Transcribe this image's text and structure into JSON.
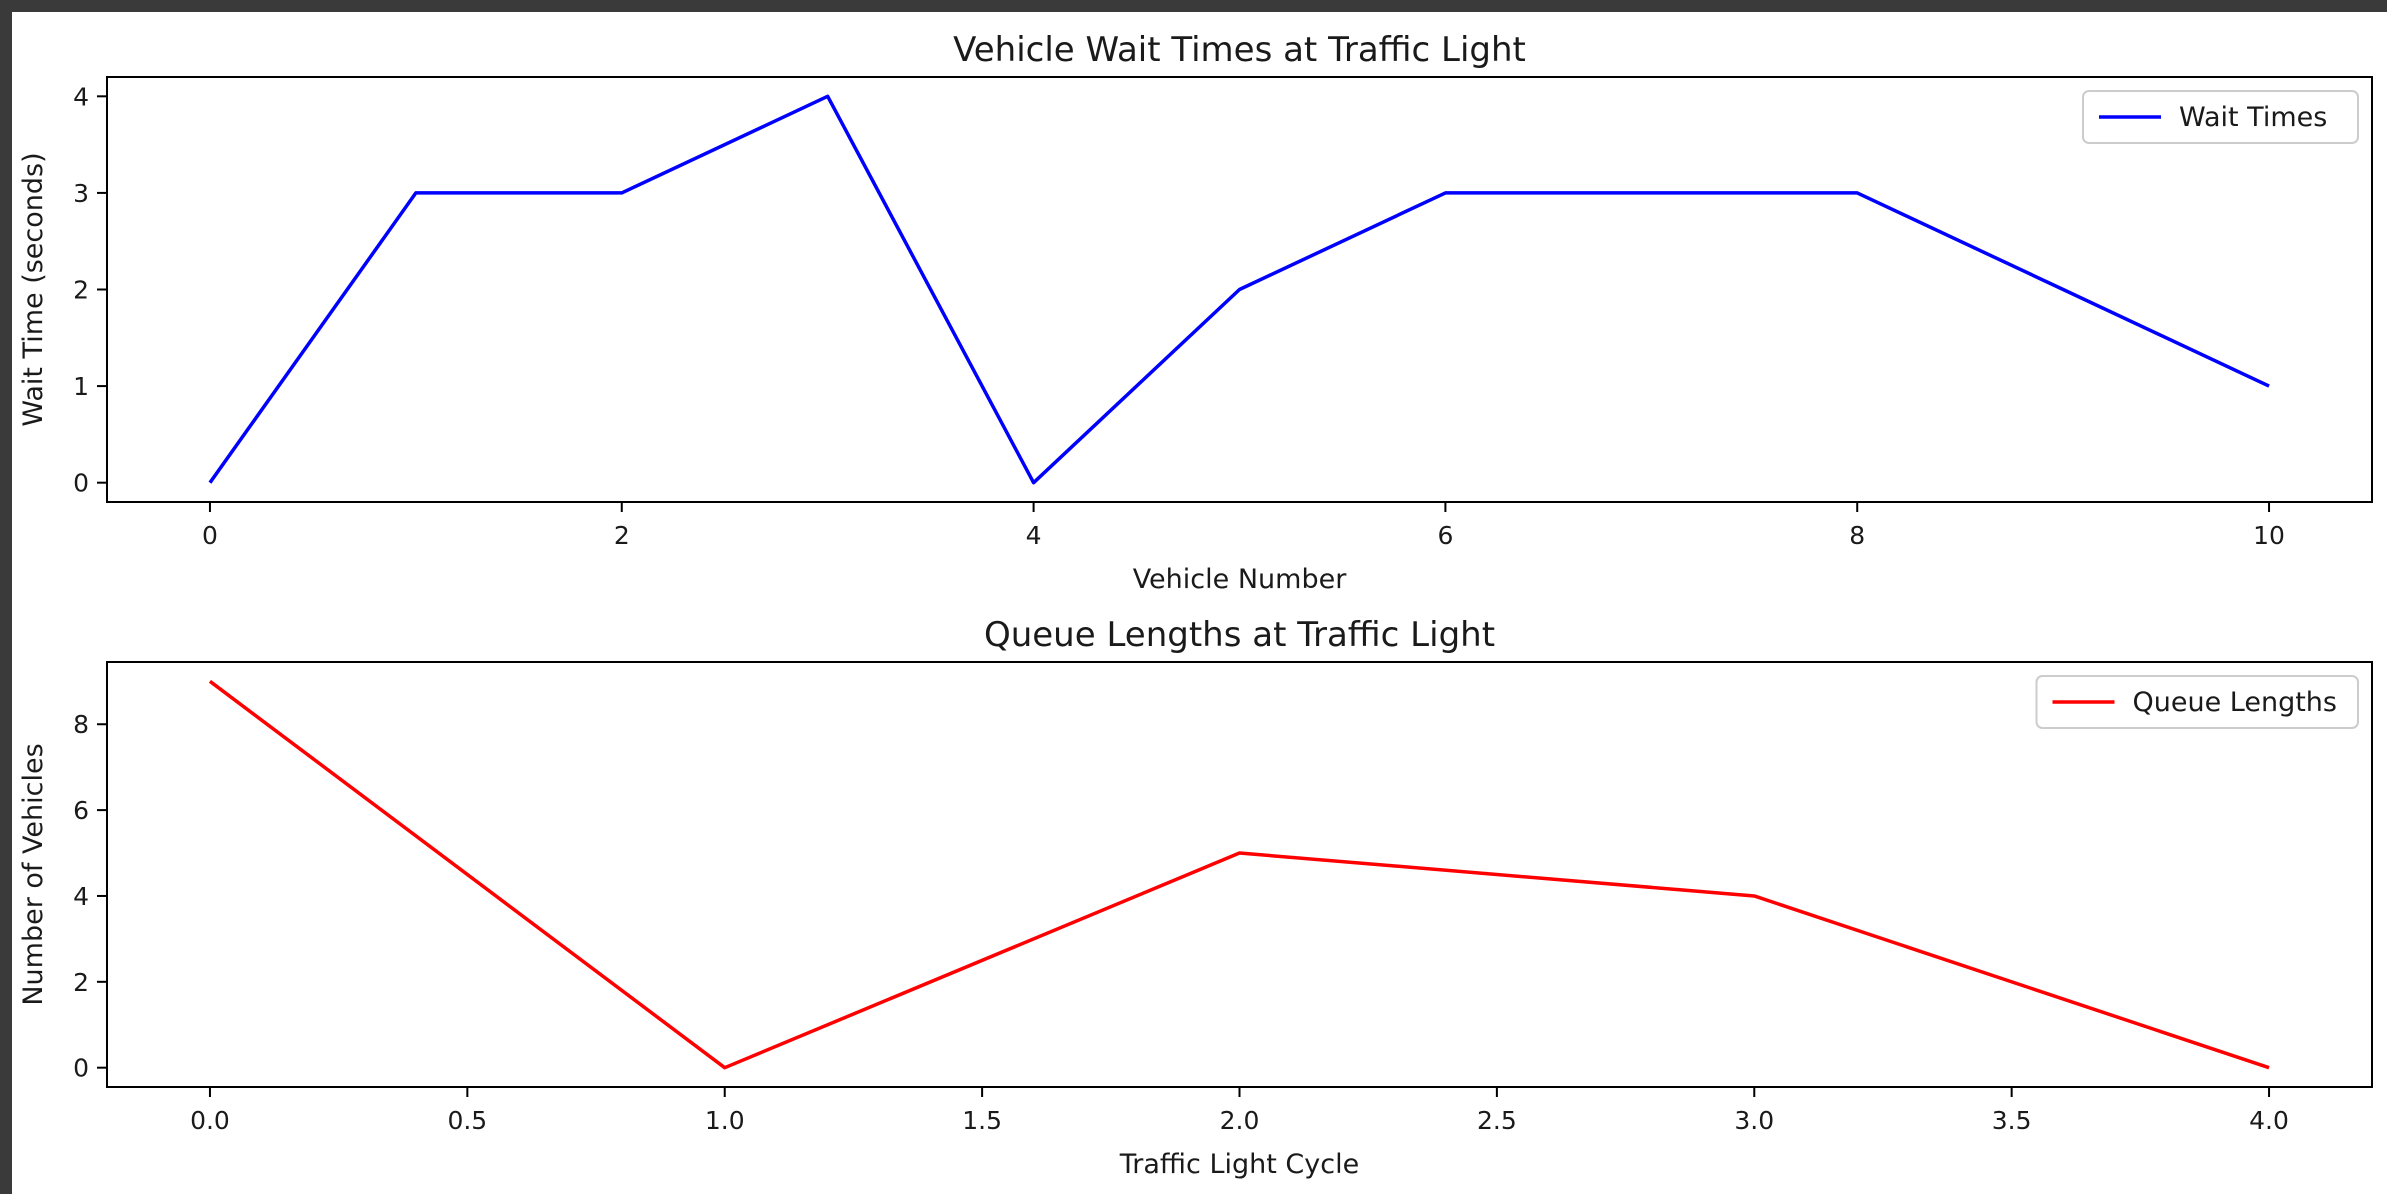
{
  "chart_data": [
    {
      "type": "line",
      "title": "Vehicle Wait Times at Traffic Light",
      "xlabel": "Vehicle Number",
      "ylabel": "Wait Time (seconds)",
      "x": [
        0,
        1,
        2,
        3,
        4,
        5,
        6,
        7,
        8,
        9,
        10
      ],
      "xlim": [
        -0.5,
        10.5
      ],
      "ylim": [
        -0.2,
        4.2
      ],
      "xticks": [
        0,
        2,
        4,
        6,
        8,
        10
      ],
      "xtick_labels": [
        "0",
        "2",
        "4",
        "6",
        "8",
        "10"
      ],
      "yticks": [
        0,
        1,
        2,
        3,
        4
      ],
      "ytick_labels": [
        "0",
        "1",
        "2",
        "3",
        "4"
      ],
      "series": [
        {
          "name": "Wait Times",
          "color": "#0000ff",
          "values": [
            0,
            3,
            3,
            4,
            0,
            2,
            3,
            3,
            3,
            2,
            1
          ]
        }
      ],
      "legend": "top-right",
      "grid": false
    },
    {
      "type": "line",
      "title": "Queue Lengths at Traffic Light",
      "xlabel": "Traffic Light Cycle",
      "ylabel": "Number of Vehicles",
      "x": [
        0,
        1,
        2,
        3,
        4
      ],
      "xlim": [
        -0.2,
        4.2
      ],
      "ylim": [
        -0.45,
        9.45
      ],
      "xticks": [
        0.0,
        0.5,
        1.0,
        1.5,
        2.0,
        2.5,
        3.0,
        3.5,
        4.0
      ],
      "xtick_labels": [
        "0.0",
        "0.5",
        "1.0",
        "1.5",
        "2.0",
        "2.5",
        "3.0",
        "3.5",
        "4.0"
      ],
      "yticks": [
        0,
        2,
        4,
        6,
        8
      ],
      "ytick_labels": [
        "0",
        "2",
        "4",
        "6",
        "8"
      ],
      "series": [
        {
          "name": "Queue Lengths",
          "color": "#ff0000",
          "values": [
            9,
            0,
            5,
            4,
            0
          ]
        }
      ],
      "legend": "top-right",
      "grid": false
    }
  ]
}
